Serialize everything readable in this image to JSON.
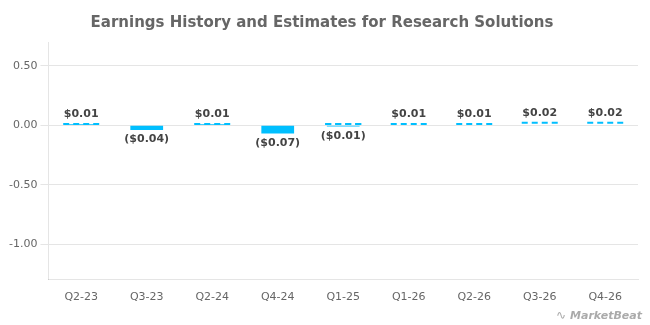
{
  "chart_data": {
    "type": "bar",
    "title": "Earnings History and Estimates for Research Solutions",
    "categories": [
      "Q2-23",
      "Q3-23",
      "Q2-24",
      "Q4-24",
      "Q1-25",
      "Q1-26",
      "Q2-26",
      "Q3-26",
      "Q4-26"
    ],
    "series": [
      {
        "type": "bar",
        "color": "#00bfff",
        "values": [
          0.01,
          -0.04,
          0.01,
          -0.07,
          -0.01,
          null,
          null,
          null,
          null
        ],
        "value_labels": [
          "$0.01",
          "($0.04)",
          "$0.01",
          "($0.07)",
          "($0.01)",
          null,
          null,
          null,
          null
        ]
      },
      {
        "type": "line",
        "line_style": "dashed",
        "color": "#00bfff",
        "values": [
          0.01,
          null,
          0.01,
          null,
          0.01,
          null,
          null,
          null,
          null
        ]
      },
      {
        "type": "line",
        "line_style": "dashed",
        "color": "#00bfff",
        "values": [
          null,
          null,
          null,
          null,
          0.01,
          0.01,
          0.01,
          0.02,
          0.02
        ],
        "value_labels": [
          null,
          null,
          null,
          null,
          null,
          "$0.01",
          "$0.01",
          "$0.02",
          "$0.02"
        ]
      }
    ],
    "ylim": [
      -1.3,
      0.7
    ],
    "yticks": [
      {
        "value": -1.0,
        "label": "-1.00"
      },
      {
        "value": -0.5,
        "label": "-0.50"
      },
      {
        "value": 0.0,
        "label": "0.00"
      },
      {
        "value": 0.5,
        "label": "0.50"
      }
    ],
    "grid": true,
    "data_labels": true,
    "annotations": [
      "∿",
      "MarketBeat"
    ]
  }
}
